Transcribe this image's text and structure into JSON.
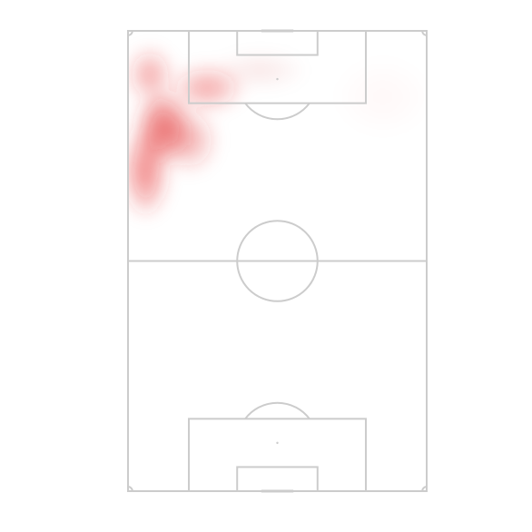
{
  "chart_data": {
    "type": "heatmap",
    "title": "",
    "xlabel": "",
    "ylabel": "",
    "grid": false,
    "legend": "none",
    "pitch": {
      "orientation": "vertical",
      "length_units": 105,
      "width_units": 68,
      "line_color": "#cccccc",
      "background": "#ffffff"
    },
    "heat_color": "#e32b2b",
    "hotspots": [
      {
        "x": 8,
        "y": 83,
        "intensity": 1.0,
        "spread_x": 6,
        "spread_y": 8
      },
      {
        "x": 4,
        "y": 73,
        "intensity": 0.75,
        "spread_x": 5,
        "spread_y": 10
      },
      {
        "x": 5,
        "y": 95,
        "intensity": 0.5,
        "spread_x": 5,
        "spread_y": 6
      },
      {
        "x": 18,
        "y": 92,
        "intensity": 0.5,
        "spread_x": 8,
        "spread_y": 5
      },
      {
        "x": 14,
        "y": 80,
        "intensity": 0.45,
        "spread_x": 6,
        "spread_y": 7
      },
      {
        "x": 30,
        "y": 96,
        "intensity": 0.12,
        "spread_x": 10,
        "spread_y": 4
      },
      {
        "x": 58,
        "y": 90,
        "intensity": 0.05,
        "spread_x": 10,
        "spread_y": 8
      }
    ]
  }
}
